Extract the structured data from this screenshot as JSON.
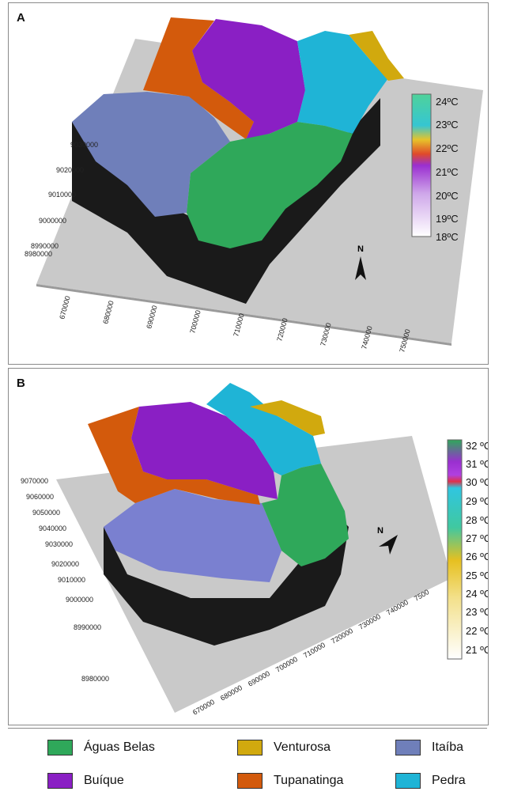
{
  "panelA": {
    "letter": "A",
    "scale": [
      "24ºC",
      "23ºC",
      "22ºC",
      "21ºC",
      "20ºC",
      "19ºC",
      "18ºC"
    ],
    "north": "N",
    "xticks": [
      "670000",
      "680000",
      "690000",
      "700000",
      "710000",
      "720000",
      "730000",
      "740000",
      "750000"
    ],
    "yticks": [
      "9030000",
      "9020000",
      "9010000",
      "9000000",
      "8990000",
      "8980000"
    ]
  },
  "panelB": {
    "letter": "B",
    "scale": [
      "32 ºC",
      "31 ºC",
      "30 ºC",
      "29 ºC",
      "28 ºC",
      "27 ºC",
      "26 ºC",
      "25 ºC",
      "24 ºC",
      "23 ºC",
      "22 ºC",
      "21 ºC"
    ],
    "north": "N",
    "xticks": [
      "670000",
      "680000",
      "690000",
      "700000",
      "710000",
      "720000",
      "730000",
      "740000",
      "7500"
    ],
    "yticks": [
      "9070000",
      "9060000",
      "9050000",
      "9040000",
      "9030000",
      "9020000",
      "9010000",
      "9000000",
      "8990000",
      "8980000"
    ]
  },
  "legend": [
    {
      "label": "Águas Belas",
      "color": "#2fa85a"
    },
    {
      "label": "Venturosa",
      "color": "#d1a90e"
    },
    {
      "label": "Itaíba",
      "color": "#6f7fba"
    },
    {
      "label": "Buíque",
      "color": "#8a1fc4"
    },
    {
      "label": "Tupanatinga",
      "color": "#d35a0c"
    },
    {
      "label": "Pedra",
      "color": "#1fb4d6"
    }
  ]
}
